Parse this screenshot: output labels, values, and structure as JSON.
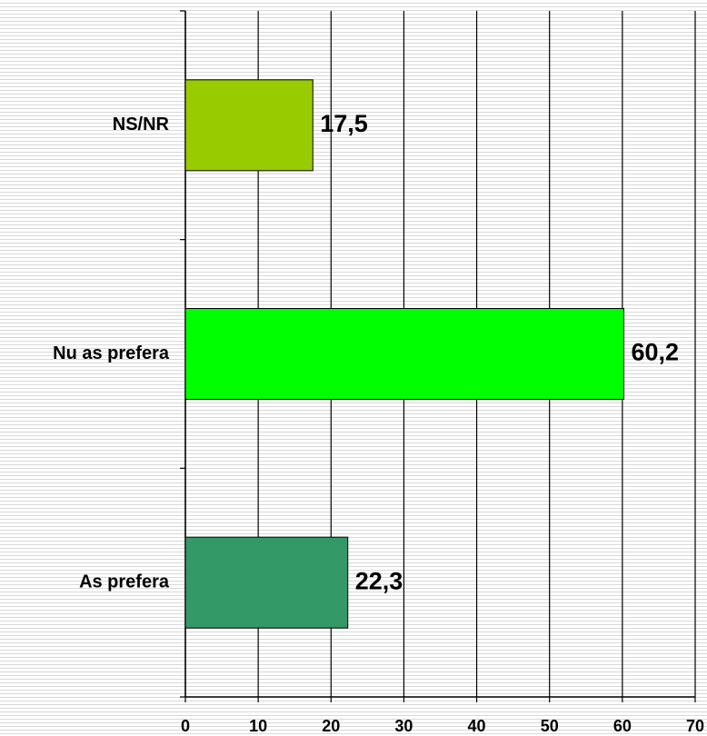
{
  "chart_data": {
    "type": "bar",
    "orientation": "horizontal",
    "categories": [
      "NS/NR",
      "Nu as prefera",
      "As prefera"
    ],
    "values": [
      17.5,
      60.2,
      22.3
    ],
    "value_labels": [
      "17,5",
      "60,2",
      "22,3"
    ],
    "colors": [
      "#99cc00",
      "#00ff00",
      "#339966"
    ],
    "xlim": [
      0,
      70
    ],
    "xticks": [
      0,
      10,
      20,
      30,
      40,
      50,
      60,
      70
    ],
    "grid": true
  }
}
